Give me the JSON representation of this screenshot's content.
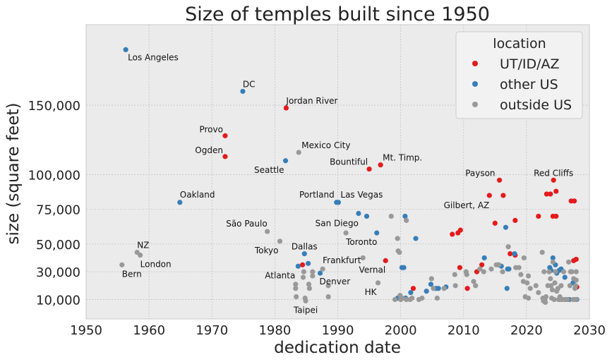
{
  "chart_data": {
    "type": "scatter",
    "title": "Size of temples built since 1950",
    "xlabel": "dedication date",
    "ylabel": "size (square feet)",
    "xlim": [
      1950,
      2030
    ],
    "ylim": [
      -4000,
      208000
    ],
    "xticks": [
      1950,
      1960,
      1970,
      1980,
      1990,
      2000,
      2010,
      2020,
      2030
    ],
    "yticks": [
      10000,
      30000,
      50000,
      75000,
      100000,
      150000
    ],
    "ytick_labels": [
      "10,000",
      "30,000",
      "50,000",
      "75,000",
      "100,000",
      "150,000"
    ],
    "grid": true,
    "legend": {
      "title": "location",
      "placement": "top-right"
    },
    "series": [
      {
        "name": "UT/ID/AZ",
        "color": "#e41a1c",
        "points": [
          [
            1972.1,
            128000
          ],
          [
            1972.1,
            113000
          ],
          [
            1981.8,
            148000
          ],
          [
            1984.4,
            35000
          ],
          [
            1995.0,
            104000
          ],
          [
            1996.8,
            107000
          ],
          [
            1997.6,
            38000
          ],
          [
            1999.8,
            11000
          ],
          [
            2002.0,
            18000
          ],
          [
            2008.2,
            57000
          ],
          [
            2009.1,
            58000
          ],
          [
            2009.5,
            60000
          ],
          [
            2009.4,
            33000
          ],
          [
            2010.6,
            18000
          ],
          [
            2012.1,
            30000
          ],
          [
            2012.9,
            35000
          ],
          [
            2014.1,
            85000
          ],
          [
            2015.0,
            65000
          ],
          [
            2015.7,
            96000
          ],
          [
            2016.3,
            85000
          ],
          [
            2017.4,
            43000
          ],
          [
            2018.2,
            67000
          ],
          [
            2018.2,
            42000
          ],
          [
            2021.9,
            70000
          ],
          [
            2023.2,
            86000
          ],
          [
            2023.8,
            86000
          ],
          [
            2024.2,
            70000
          ],
          [
            2024.3,
            96000
          ],
          [
            2024.7,
            70000
          ],
          [
            2024.7,
            88000
          ],
          [
            2027.1,
            81000
          ],
          [
            2027.6,
            81000
          ],
          [
            2027.5,
            38000
          ],
          [
            2027.9,
            39000
          ],
          [
            2028.0,
            19000
          ]
        ]
      },
      {
        "name": "other US",
        "color": "#377eb8",
        "points": [
          [
            1956.3,
            190000
          ],
          [
            1964.9,
            80000
          ],
          [
            1974.9,
            160000
          ],
          [
            1981.7,
            110000
          ],
          [
            1983.7,
            34000
          ],
          [
            1984.7,
            43000
          ],
          [
            1985.3,
            36000
          ],
          [
            1987.2,
            29000
          ],
          [
            1989.8,
            80000
          ],
          [
            1990.1,
            80000
          ],
          [
            1993.3,
            72000
          ],
          [
            1994.6,
            70000
          ],
          [
            1996.2,
            58000
          ],
          [
            1999.5,
            11000
          ],
          [
            2000.2,
            33000
          ],
          [
            2000.5,
            33000
          ],
          [
            2000.7,
            70000
          ],
          [
            2000.8,
            11000
          ],
          [
            2001.6,
            15000
          ],
          [
            2002.4,
            54000
          ],
          [
            2004.1,
            16000
          ],
          [
            2004.8,
            21000
          ],
          [
            2005.6,
            18000
          ],
          [
            2006.0,
            18000
          ],
          [
            2007.2,
            19000
          ],
          [
            2013.3,
            40000
          ],
          [
            2015.5,
            35000
          ],
          [
            2016.0,
            34000
          ],
          [
            2016.7,
            62000
          ],
          [
            2016.9,
            18000
          ],
          [
            2017.0,
            32000
          ],
          [
            2017.2,
            32000
          ],
          [
            2018.1,
            43000
          ],
          [
            2023.7,
            33000
          ],
          [
            2023.9,
            31000
          ],
          [
            2024.2,
            40000
          ],
          [
            2024.6,
            35000
          ],
          [
            2024.8,
            29000
          ],
          [
            2025.2,
            31000
          ],
          [
            2025.5,
            32000
          ],
          [
            2025.2,
            10000
          ],
          [
            2026.1,
            26000
          ],
          [
            2026.8,
            10000
          ],
          [
            2027.4,
            22000
          ],
          [
            2028.0,
            10000
          ]
        ]
      },
      {
        "name": "outside US",
        "color": "#999999",
        "points": [
          [
            1955.7,
            35000
          ],
          [
            1958.1,
            44000
          ],
          [
            1958.6,
            42000
          ],
          [
            1978.8,
            59000
          ],
          [
            1980.8,
            52000
          ],
          [
            1983.8,
            116000
          ],
          [
            1983.3,
            21000
          ],
          [
            1983.3,
            18000
          ],
          [
            1983.4,
            12000
          ],
          [
            1984.6,
            30000
          ],
          [
            1984.5,
            26000
          ],
          [
            1984.8,
            11000
          ],
          [
            1984.9,
            9000
          ],
          [
            1985.4,
            21000
          ],
          [
            1985.5,
            18000
          ],
          [
            1986.0,
            30000
          ],
          [
            1986.0,
            27000
          ],
          [
            1987.6,
            32000
          ],
          [
            1988.5,
            20000
          ],
          [
            1988.5,
            12000
          ],
          [
            1991.3,
            58000
          ],
          [
            1994.0,
            40000
          ],
          [
            1996.4,
            22000
          ],
          [
            1998.5,
            70000
          ],
          [
            1999.1,
            10000
          ],
          [
            1999.5,
            54000
          ],
          [
            1999.6,
            45000
          ],
          [
            1999.8,
            44000
          ],
          [
            1999.9,
            13000
          ],
          [
            2000.0,
            10000
          ],
          [
            2000.3,
            11000
          ],
          [
            2000.9,
            67000
          ],
          [
            2000.9,
            10000
          ],
          [
            2001.5,
            10000
          ],
          [
            2001.8,
            11000
          ],
          [
            2002.9,
            10000
          ],
          [
            2003.4,
            11000
          ],
          [
            2004.9,
            25000
          ],
          [
            2005.2,
            18000
          ],
          [
            2005.8,
            11000
          ],
          [
            2006.9,
            18000
          ],
          [
            2008.6,
            28000
          ],
          [
            2008.7,
            20000
          ],
          [
            2010.4,
            30000
          ],
          [
            2010.5,
            28000
          ],
          [
            2011.6,
            23000
          ],
          [
            2011.9,
            20000
          ],
          [
            2012.6,
            32000
          ],
          [
            2013.2,
            30000
          ],
          [
            2014.4,
            32000
          ],
          [
            2015.2,
            35000
          ],
          [
            2015.6,
            35000
          ],
          [
            2016.2,
            30000
          ],
          [
            2017.1,
            48000
          ],
          [
            2018.3,
            33000
          ],
          [
            2018.8,
            33000
          ],
          [
            2019.1,
            28000
          ],
          [
            2019.5,
            23000
          ],
          [
            2019.8,
            12000
          ],
          [
            2019.6,
            40000
          ],
          [
            2020.1,
            22000
          ],
          [
            2020.3,
            11000
          ],
          [
            2020.3,
            27000
          ],
          [
            2020.6,
            18000
          ],
          [
            2021.5,
            20000
          ],
          [
            2021.9,
            15000
          ],
          [
            2022.5,
            44000
          ],
          [
            2022.6,
            11000
          ],
          [
            2022.7,
            9000
          ],
          [
            2022.8,
            30000
          ],
          [
            2022.9,
            10000
          ],
          [
            2023.0,
            8000
          ],
          [
            2023.1,
            12000
          ],
          [
            2023.4,
            20000
          ],
          [
            2023.6,
            30000
          ],
          [
            2023.8,
            25000
          ],
          [
            2023.9,
            20000
          ],
          [
            2024.0,
            11000
          ],
          [
            2024.1,
            17000
          ],
          [
            2024.2,
            37000
          ],
          [
            2024.4,
            10000
          ],
          [
            2024.5,
            22000
          ],
          [
            2024.6,
            30000
          ],
          [
            2024.8,
            16000
          ],
          [
            2025.0,
            18000
          ],
          [
            2025.1,
            10000
          ],
          [
            2025.3,
            12000
          ],
          [
            2025.5,
            20000
          ],
          [
            2025.6,
            10000
          ],
          [
            2025.7,
            10000
          ],
          [
            2025.9,
            30000
          ],
          [
            2026.1,
            10000
          ],
          [
            2026.3,
            10000
          ],
          [
            2026.4,
            10000
          ],
          [
            2026.5,
            10000
          ],
          [
            2026.7,
            37000
          ],
          [
            2026.9,
            20000
          ],
          [
            2027.0,
            30000
          ],
          [
            2027.2,
            30000
          ],
          [
            2027.4,
            10000
          ],
          [
            2027.5,
            25000
          ],
          [
            2027.6,
            10000
          ],
          [
            2027.7,
            18000
          ],
          [
            2027.8,
            20000
          ],
          [
            2027.9,
            30000
          ],
          [
            2027.9,
            10000
          ],
          [
            2027.9,
            24000
          ]
        ]
      }
    ],
    "annotations": [
      {
        "text": "Los Angeles",
        "x": 1956.3,
        "y": 190000,
        "dx": 3,
        "dy": 15,
        "anchor": "start"
      },
      {
        "text": "DC",
        "x": 1974.9,
        "y": 160000,
        "dx": 0,
        "dy": -6,
        "anchor": "start"
      },
      {
        "text": "Jordan River",
        "x": 1981.8,
        "y": 148000,
        "dx": 0,
        "dy": -6,
        "anchor": "start"
      },
      {
        "text": "Provo",
        "x": 1972.1,
        "y": 128000,
        "dx": -3,
        "dy": -5,
        "anchor": "end"
      },
      {
        "text": "Ogden",
        "x": 1972.1,
        "y": 113000,
        "dx": -3,
        "dy": -5,
        "anchor": "end"
      },
      {
        "text": "Mexico City",
        "x": 1983.8,
        "y": 116000,
        "dx": 4,
        "dy": -6,
        "anchor": "start"
      },
      {
        "text": "Seattle",
        "x": 1981.7,
        "y": 110000,
        "dx": -2,
        "dy": 17,
        "anchor": "end"
      },
      {
        "text": "Bountiful",
        "x": 1995.0,
        "y": 104000,
        "dx": -2,
        "dy": -6,
        "anchor": "end"
      },
      {
        "text": "Mt. Timp.",
        "x": 1996.8,
        "y": 107000,
        "dx": 3,
        "dy": -6,
        "anchor": "start"
      },
      {
        "text": "Payson",
        "x": 2015.7,
        "y": 96000,
        "dx": -6,
        "dy": -6,
        "anchor": "end"
      },
      {
        "text": "Red Cliffs",
        "x": 2024.3,
        "y": 96000,
        "dx": 0,
        "dy": -6,
        "anchor": "middle"
      },
      {
        "text": "Oakland",
        "x": 1964.9,
        "y": 80000,
        "dx": 0,
        "dy": -7,
        "anchor": "start"
      },
      {
        "text": "Portland",
        "x": 1989.8,
        "y": 80000,
        "dx": -3,
        "dy": -7,
        "anchor": "end"
      },
      {
        "text": "Las Vegas",
        "x": 1990.1,
        "y": 80000,
        "dx": 3,
        "dy": -7,
        "anchor": "start"
      },
      {
        "text": "Gilbert, AZ",
        "x": 2014.1,
        "y": 85000,
        "dx": 0,
        "dy": 18,
        "anchor": "end"
      },
      {
        "text": "São Paulo",
        "x": 1978.8,
        "y": 59000,
        "dx": 0,
        "dy": -7,
        "anchor": "end"
      },
      {
        "text": "San Diego",
        "x": 1993.3,
        "y": 72000,
        "dx": 0,
        "dy": 18,
        "anchor": "end"
      },
      {
        "text": "NZ",
        "x": 1958.1,
        "y": 44000,
        "dx": 0,
        "dy": -6,
        "anchor": "start"
      },
      {
        "text": "Tokyo",
        "x": 1980.8,
        "y": 52000,
        "dx": -2,
        "dy": 17,
        "anchor": "end"
      },
      {
        "text": "Toronto",
        "x": 1991.3,
        "y": 58000,
        "dx": 0,
        "dy": 17,
        "anchor": "start"
      },
      {
        "text": "Dallas",
        "x": 1984.7,
        "y": 43000,
        "dx": 0,
        "dy": -6,
        "anchor": "middle"
      },
      {
        "text": "London",
        "x": 1958.6,
        "y": 42000,
        "dx": 0,
        "dy": 17,
        "anchor": "start"
      },
      {
        "text": "Frankfurt",
        "x": 1987.6,
        "y": 32000,
        "dx": 0,
        "dy": -8,
        "anchor": "start"
      },
      {
        "text": "Vernal",
        "x": 1997.6,
        "y": 38000,
        "dx": 0,
        "dy": 17,
        "anchor": "end"
      },
      {
        "text": "Bern",
        "x": 1955.7,
        "y": 35000,
        "dx": 0,
        "dy": 17,
        "anchor": "start"
      },
      {
        "text": "Atlanta",
        "x": 1983.7,
        "y": 34000,
        "dx": -4,
        "dy": 17,
        "anchor": "end"
      },
      {
        "text": "Denver",
        "x": 1987.2,
        "y": 29000,
        "dx": -1,
        "dy": 16,
        "anchor": "start"
      },
      {
        "text": "HK",
        "x": 1996.4,
        "y": 22000,
        "dx": -2,
        "dy": 17,
        "anchor": "end"
      },
      {
        "text": "Taipei",
        "x": 1984.9,
        "y": 9000,
        "dx": 0,
        "dy": 17,
        "anchor": "middle"
      }
    ]
  }
}
